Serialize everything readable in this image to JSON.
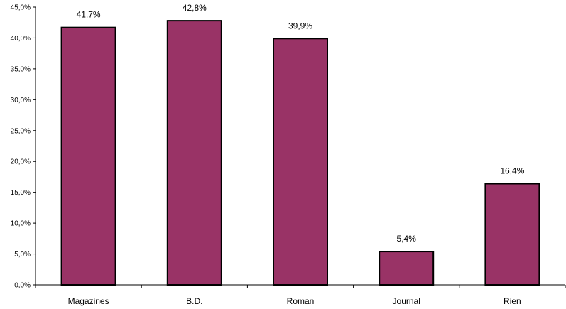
{
  "chart_data": {
    "type": "bar",
    "title": "",
    "xlabel": "",
    "ylabel": "",
    "categories": [
      "Magazines",
      "B.D.",
      "Roman",
      "Journal",
      "Rien"
    ],
    "values": [
      41.7,
      42.8,
      39.9,
      5.4,
      16.4
    ],
    "value_labels": [
      "41,7%",
      "42,8%",
      "39,9%",
      "5,4%",
      "16,4%"
    ],
    "ylim": [
      0,
      45
    ],
    "yticks": [
      0,
      5,
      10,
      15,
      20,
      25,
      30,
      35,
      40,
      45
    ],
    "ytick_labels": [
      "0,0%",
      "5,0%",
      "10,0%",
      "15,0%",
      "20,0%",
      "25,0%",
      "30,0%",
      "35,0%",
      "40,0%",
      "45,0%"
    ],
    "grid": false,
    "legend": "none",
    "colors": {
      "bar_fill": "#993366",
      "bar_stroke": "#000000",
      "axis": "#000000"
    }
  }
}
